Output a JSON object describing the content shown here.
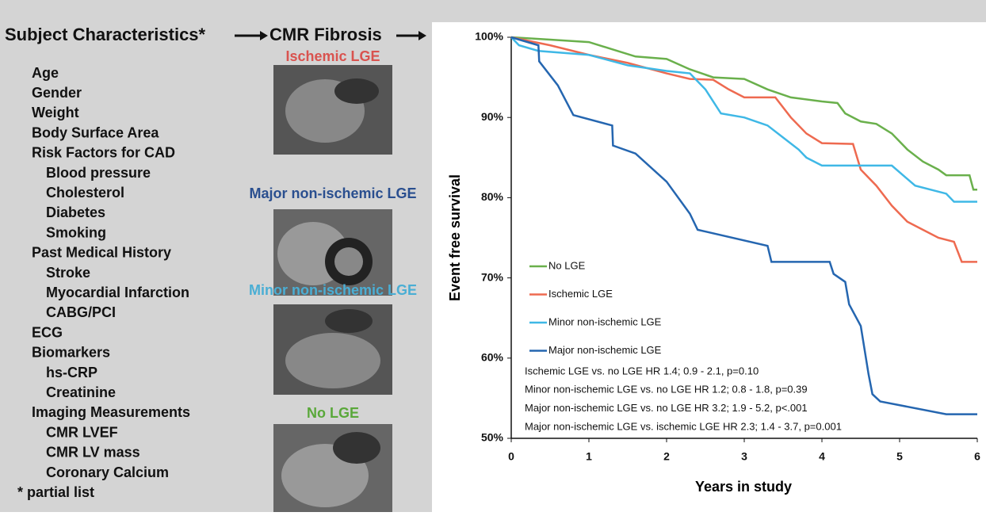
{
  "panel": {
    "header": [
      "Subject Characteristics*",
      "CMR Fibrosis"
    ],
    "characteristics": [
      {
        "label": "Age"
      },
      {
        "label": "Gender"
      },
      {
        "label": "Weight"
      },
      {
        "label": "Body Surface Area"
      },
      {
        "label": "Risk Factors for CAD",
        "sub": [
          "Blood pressure",
          "Cholesterol",
          "Diabetes",
          "Smoking"
        ]
      },
      {
        "label": "Past Medical History",
        "sub": [
          "Stroke",
          "Myocardial Infarction",
          "CABG/PCI"
        ]
      },
      {
        "label": "ECG"
      },
      {
        "label": "Biomarkers",
        "sub": [
          "hs-CRP",
          "Creatinine"
        ]
      },
      {
        "label": "Imaging Measurements",
        "sub": [
          "CMR LVEF",
          "CMR LV mass",
          "Coronary Calcium"
        ]
      }
    ],
    "footnote": "* partial list",
    "image_labels": [
      "Ischemic LGE",
      "Major non-ischemic LGE",
      "Minor non-ischemic LGE",
      "No LGE"
    ]
  },
  "chart_data": {
    "type": "line",
    "y_label": "Event free survival",
    "x_label": "Years in study",
    "xlim": [
      0,
      6
    ],
    "xticks": [
      0,
      1,
      2,
      3,
      4,
      5,
      6
    ],
    "ylim": [
      50,
      100
    ],
    "yticks": [
      {
        "value": 50,
        "label": "50%"
      },
      {
        "value": 60,
        "label": "60%"
      },
      {
        "value": 70,
        "label": "70%"
      },
      {
        "value": 80,
        "label": "80%"
      },
      {
        "value": 90,
        "label": "90%"
      },
      {
        "value": 100,
        "label": "100%"
      }
    ],
    "series": [
      {
        "name": "No LGE",
        "color": "#6ab04c",
        "x": [
          0,
          0.5,
          1,
          1.3,
          1.6,
          2,
          2.3,
          2.6,
          3,
          3.3,
          3.6,
          4,
          4.2,
          4.3,
          4.5,
          4.7,
          4.9,
          5.1,
          5.3,
          5.5,
          5.6,
          5.9,
          5.95,
          6
        ],
        "values": [
          100,
          99.7,
          99.4,
          98.5,
          97.6,
          97.3,
          96,
          95,
          94.8,
          93.5,
          92.5,
          92,
          91.8,
          90.5,
          89.5,
          89.2,
          88,
          86,
          84.5,
          83.5,
          82.8,
          82.8,
          81,
          81
        ]
      },
      {
        "name": "Ischemic LGE",
        "color": "#ee6a50",
        "x": [
          0,
          0.5,
          1,
          1.5,
          2,
          2.3,
          2.6,
          2.8,
          3,
          3.4,
          3.6,
          3.8,
          4,
          4.4,
          4.5,
          4.7,
          4.9,
          5.1,
          5.3,
          5.5,
          5.7,
          5.8,
          6
        ],
        "values": [
          100,
          99,
          97.8,
          96.8,
          95.5,
          94.8,
          94.7,
          93.5,
          92.5,
          92.5,
          90,
          88,
          86.8,
          86.7,
          83.5,
          81.5,
          79,
          77,
          76,
          75,
          74.5,
          72,
          72
        ]
      },
      {
        "name": "Minor non-ischemic LGE",
        "color": "#3fb8e6",
        "x": [
          0,
          0.1,
          0.35,
          1,
          1.5,
          2,
          2.3,
          2.5,
          2.7,
          3,
          3.3,
          3.5,
          3.7,
          3.8,
          4,
          4.9,
          5.2,
          5.6,
          5.7,
          6
        ],
        "values": [
          100,
          99,
          98.3,
          97.8,
          96.5,
          95.8,
          95.5,
          93.5,
          90.5,
          90,
          89,
          87.5,
          86,
          85,
          84,
          84,
          81.5,
          80.5,
          79.5,
          79.5
        ]
      },
      {
        "name": "Major non-ischemic LGE",
        "color": "#2566b0",
        "x": [
          0,
          0.35,
          0.36,
          0.6,
          0.8,
          1.3,
          1.31,
          1.6,
          2,
          2.3,
          2.4,
          3.3,
          3.35,
          4.1,
          4.15,
          4.3,
          4.35,
          4.5,
          4.55,
          4.6,
          4.65,
          4.75,
          5.6,
          6
        ],
        "values": [
          100,
          99,
          97,
          94,
          90.3,
          89,
          86.5,
          85.5,
          82,
          78,
          76,
          74,
          72,
          72,
          70.5,
          69.5,
          66.7,
          64,
          61,
          58,
          55.5,
          54.6,
          53,
          53
        ]
      }
    ],
    "annotations": [
      "Ischemic LGE vs. no LGE HR 1.4; 0.9 - 2.1, p=0.10",
      "Minor non-ischemic LGE vs. no LGE HR 1.2; 0.8 - 1.8, p=0.39",
      "Major non-ischemic LGE vs. no LGE HR 3.2; 1.9 - 5.2, p<.001",
      "Major non-ischemic LGE vs. ischemic LGE HR 2.3; 1.4 - 3.7, p=0.001"
    ]
  }
}
